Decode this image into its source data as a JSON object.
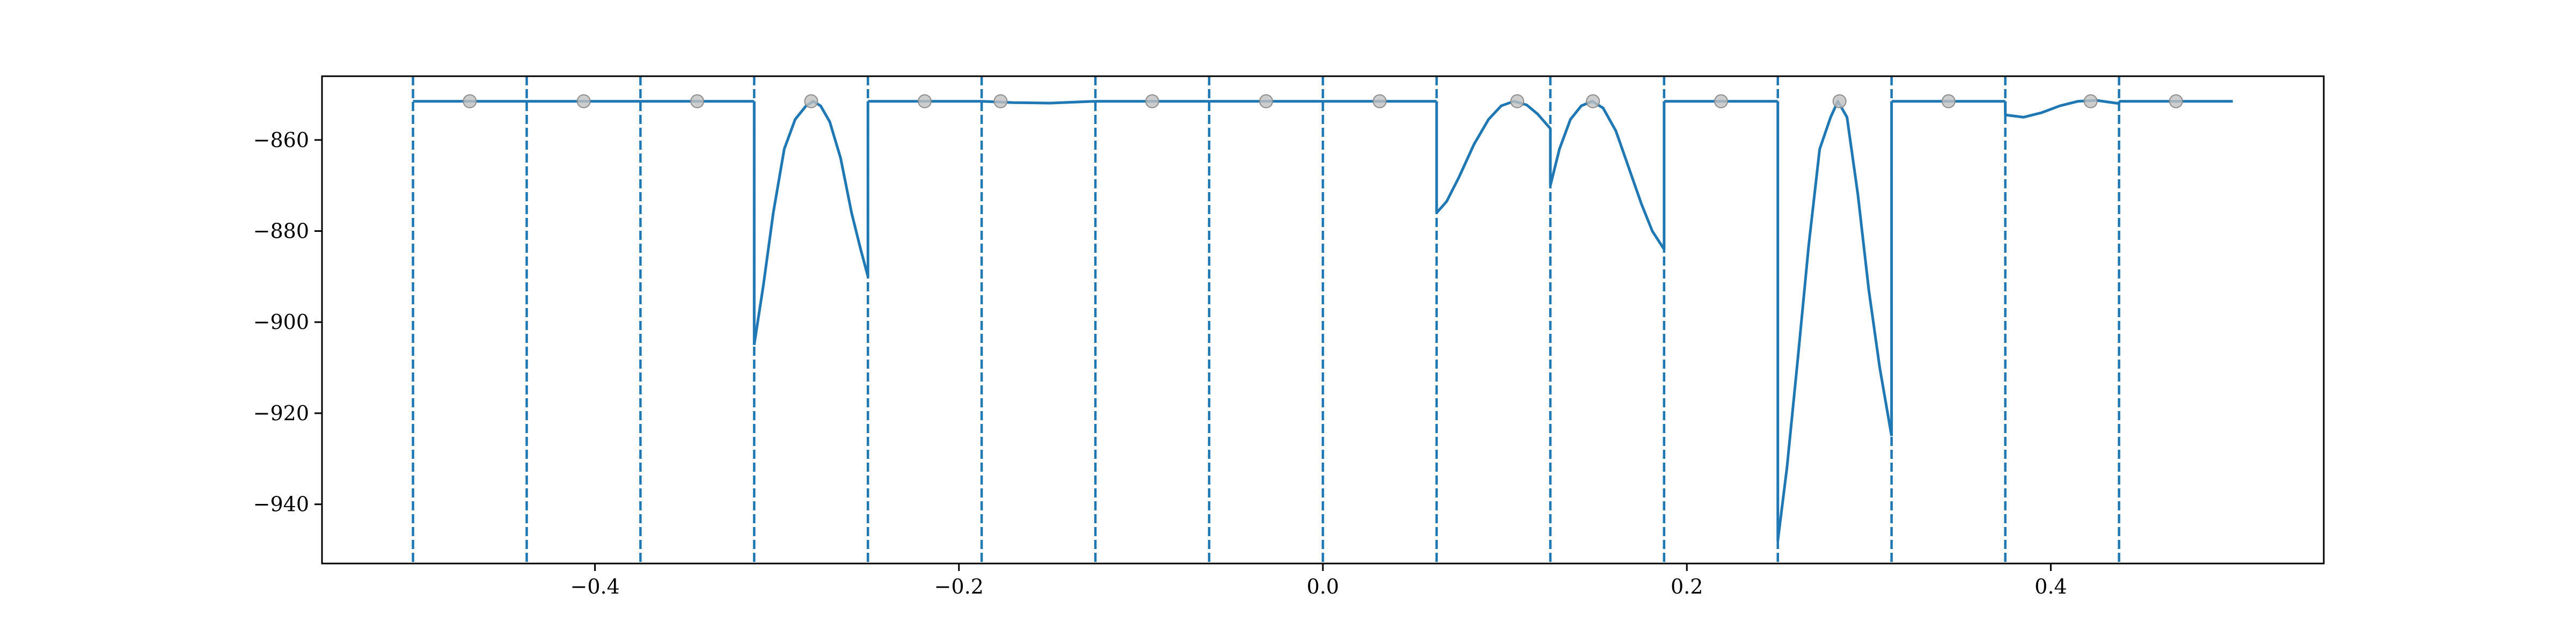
{
  "chart_data": {
    "type": "line",
    "title": "",
    "xlabel": "",
    "ylabel": "",
    "xlim": [
      -0.55,
      0.55
    ],
    "ylim": [
      -953,
      -846
    ],
    "grid": false,
    "x_ticks": [
      {
        "value": -0.4,
        "label": "−0.4"
      },
      {
        "value": -0.2,
        "label": "−0.2"
      },
      {
        "value": 0.0,
        "label": "0.0"
      },
      {
        "value": 0.2,
        "label": "0.2"
      },
      {
        "value": 0.4,
        "label": "0.4"
      }
    ],
    "y_ticks": [
      {
        "value": -860,
        "label": "−860"
      },
      {
        "value": -880,
        "label": "−880"
      },
      {
        "value": -900,
        "label": "−900"
      },
      {
        "value": -920,
        "label": "−920"
      },
      {
        "value": -940,
        "label": "−940"
      }
    ],
    "boundaries": [
      -0.5,
      -0.4375,
      -0.375,
      -0.3125,
      -0.25,
      -0.1875,
      -0.125,
      -0.0625,
      0.0,
      0.0625,
      0.125,
      0.1875,
      0.25,
      0.3125,
      0.375,
      0.4375
    ],
    "colors": {
      "line": "#1f77b4",
      "marker_fill": "#c0c0c0",
      "marker_edge": "#8c8c8c",
      "axes": "#000000"
    },
    "series": [
      {
        "values_type": "piecewise-line",
        "segments": [
          [
            [
              -0.5,
              -851.5
            ],
            [
              -0.4375,
              -851.5
            ]
          ],
          [
            [
              -0.4375,
              -851.5
            ],
            [
              -0.375,
              -851.5
            ]
          ],
          [
            [
              -0.375,
              -851.5
            ],
            [
              -0.3125,
              -851.5
            ]
          ],
          [
            [
              -0.3125,
              -905
            ],
            [
              -0.3075,
              -892
            ],
            [
              -0.302,
              -876
            ],
            [
              -0.296,
              -862
            ],
            [
              -0.29,
              -855.5
            ],
            [
              -0.284,
              -852.5
            ],
            [
              -0.28,
              -851.5
            ],
            [
              -0.276,
              -852.5
            ],
            [
              -0.271,
              -856
            ],
            [
              -0.265,
              -864
            ],
            [
              -0.259,
              -876
            ],
            [
              -0.254,
              -884
            ],
            [
              -0.25,
              -890
            ]
          ],
          [
            [
              -0.25,
              -851.5
            ],
            [
              -0.1875,
              -851.5
            ]
          ],
          [
            [
              -0.1875,
              -851.5
            ],
            [
              -0.17,
              -851.8
            ],
            [
              -0.15,
              -851.9
            ],
            [
              -0.125,
              -851.5
            ]
          ],
          [
            [
              -0.125,
              -851.5
            ],
            [
              -0.0625,
              -851.5
            ]
          ],
          [
            [
              -0.0625,
              -851.5
            ],
            [
              0.0,
              -851.5
            ]
          ],
          [
            [
              0.0,
              -851.5
            ],
            [
              0.0625,
              -851.5
            ]
          ],
          [
            [
              0.0625,
              -876
            ],
            [
              0.068,
              -873.5
            ],
            [
              0.075,
              -868
            ],
            [
              0.083,
              -861
            ],
            [
              0.091,
              -855.5
            ],
            [
              0.098,
              -852.5
            ],
            [
              0.105,
              -851.5
            ],
            [
              0.112,
              -852.3
            ],
            [
              0.118,
              -854.3
            ],
            [
              0.125,
              -857.5
            ]
          ],
          [
            [
              0.125,
              -870
            ],
            [
              0.13,
              -862
            ],
            [
              0.136,
              -855.5
            ],
            [
              0.142,
              -852.5
            ],
            [
              0.148,
              -851.5
            ],
            [
              0.154,
              -853
            ],
            [
              0.161,
              -858
            ],
            [
              0.168,
              -866
            ],
            [
              0.175,
              -874
            ],
            [
              0.181,
              -880
            ],
            [
              0.1875,
              -884
            ]
          ],
          [
            [
              0.1875,
              -851.5
            ],
            [
              0.25,
              -851.5
            ]
          ],
          [
            [
              0.25,
              -948
            ],
            [
              0.255,
              -932
            ],
            [
              0.261,
              -908
            ],
            [
              0.267,
              -883
            ],
            [
              0.273,
              -862
            ],
            [
              0.279,
              -855
            ],
            [
              0.283,
              -851.5
            ],
            [
              0.288,
              -855
            ],
            [
              0.294,
              -872
            ],
            [
              0.3,
              -893
            ],
            [
              0.306,
              -910
            ],
            [
              0.3125,
              -925
            ]
          ],
          [
            [
              0.3125,
              -851.5
            ],
            [
              0.375,
              -851.5
            ]
          ],
          [
            [
              0.375,
              -854.5
            ],
            [
              0.385,
              -855
            ],
            [
              0.395,
              -854
            ],
            [
              0.405,
              -852.5
            ],
            [
              0.415,
              -851.5
            ],
            [
              0.425,
              -851.3
            ],
            [
              0.4375,
              -852
            ]
          ],
          [
            [
              0.4375,
              -851.5
            ],
            [
              0.5,
              -851.5
            ]
          ]
        ]
      },
      {
        "values_type": "markers",
        "x": [
          -0.4688,
          -0.4062,
          -0.3438,
          -0.2812,
          -0.2188,
          -0.1771,
          -0.0938,
          -0.0312,
          0.0312,
          0.1068,
          0.1484,
          0.2188,
          0.2839,
          0.3438,
          0.4219,
          0.4688
        ],
        "y": [
          -851.5,
          -851.5,
          -851.5,
          -851.5,
          -851.5,
          -851.5,
          -851.5,
          -851.5,
          -851.5,
          -851.5,
          -851.5,
          -851.5,
          -851.5,
          -851.5,
          -851.5,
          -851.5
        ]
      }
    ]
  }
}
